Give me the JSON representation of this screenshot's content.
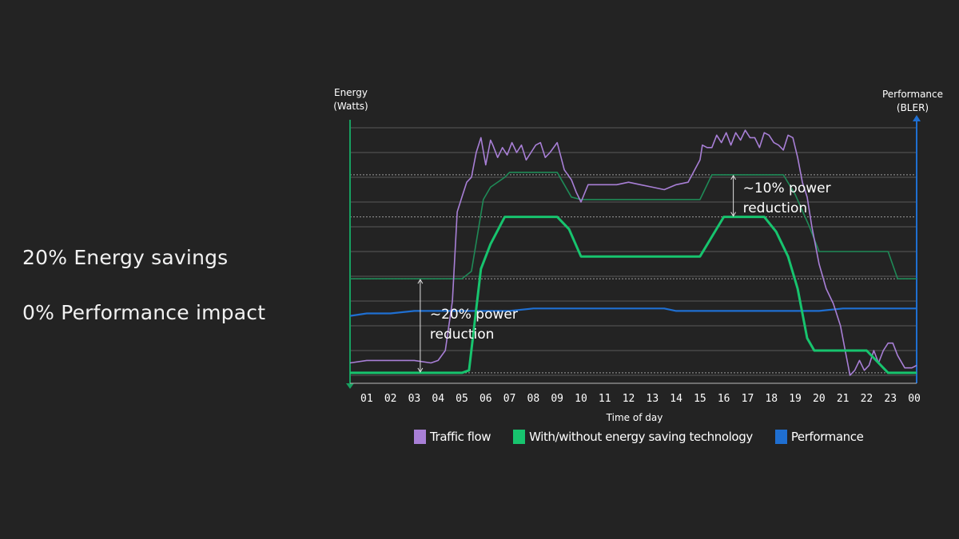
{
  "headlines": {
    "energy_savings": "20% Energy savings",
    "performance_impact": "0% Performance impact"
  },
  "colors": {
    "background": "#232323",
    "traffic": "#a87fd6",
    "with_saving": "#17c46e",
    "without_saving": "#1f8a57",
    "performance": "#1f6fd1",
    "left_axis": "#17a060",
    "right_axis": "#1f6fd1",
    "grid": "#5a5a5a"
  },
  "chart_data": {
    "type": "line",
    "title": "",
    "xlabel": "Time of day",
    "ylabel_left": [
      "Energy",
      "(Watts)"
    ],
    "ylabel_right": [
      "Performance",
      "(BLER)"
    ],
    "x_ticks": [
      "01",
      "02",
      "03",
      "04",
      "05",
      "06",
      "07",
      "08",
      "09",
      "10",
      "11",
      "12",
      "13",
      "14",
      "15",
      "16",
      "17",
      "18",
      "19",
      "20",
      "21",
      "22",
      "23",
      "00"
    ],
    "xlim": [
      0.3,
      24.1
    ],
    "ylim": [
      0,
      100
    ],
    "grid": true,
    "legend_position": "bottom",
    "series": [
      {
        "name": "Traffic flow",
        "color_key": "traffic",
        "x": [
          0.3,
          1.0,
          2.0,
          3.0,
          3.7,
          4.0,
          4.3,
          4.6,
          4.8,
          5.0,
          5.2,
          5.4,
          5.6,
          5.8,
          6.0,
          6.2,
          6.3,
          6.5,
          6.7,
          6.9,
          7.1,
          7.3,
          7.5,
          7.7,
          7.9,
          8.1,
          8.3,
          8.5,
          8.7,
          9.0,
          9.3,
          9.6,
          9.8,
          10.0,
          10.3,
          10.6,
          11.0,
          11.5,
          12.0,
          12.5,
          13.0,
          13.5,
          14.0,
          14.5,
          15.0,
          15.1,
          15.3,
          15.5,
          15.7,
          15.9,
          16.1,
          16.3,
          16.5,
          16.7,
          16.9,
          17.1,
          17.3,
          17.5,
          17.7,
          17.9,
          18.1,
          18.3,
          18.5,
          18.7,
          18.9,
          19.1,
          19.3,
          19.5,
          19.7,
          20.0,
          20.3,
          20.6,
          20.9,
          21.1,
          21.3,
          21.5,
          21.7,
          21.9,
          22.1,
          22.3,
          22.5,
          22.7,
          22.9,
          23.1,
          23.3,
          23.6,
          23.9,
          24.1
        ],
        "y": [
          5,
          6,
          6,
          6,
          5,
          6,
          10,
          30,
          66,
          72,
          78,
          80,
          90,
          96,
          85,
          95,
          93,
          88,
          92,
          89,
          94,
          90,
          93,
          87,
          90,
          93,
          94,
          88,
          90,
          94,
          83,
          79,
          74,
          70,
          77,
          77,
          77,
          77,
          78,
          77,
          76,
          75,
          77,
          78,
          87,
          93,
          92,
          92,
          97,
          94,
          98,
          93,
          98,
          95,
          99,
          96,
          96,
          92,
          98,
          97,
          94,
          93,
          91,
          97,
          96,
          88,
          78,
          72,
          60,
          45,
          35,
          29,
          20,
          10,
          0,
          2,
          6,
          2,
          4,
          10,
          5,
          10,
          13,
          13,
          8,
          3,
          3,
          4
        ]
      },
      {
        "name": "Without energy saving technology",
        "legend_group": "With/without energy saving technology",
        "color_key": "without_saving",
        "x": [
          0.3,
          1.0,
          2.0,
          3.0,
          4.0,
          5.0,
          5.4,
          5.9,
          6.2,
          6.8,
          7.0,
          7.5,
          8.0,
          9.0,
          9.6,
          10.0,
          10.5,
          11.0,
          12.0,
          13.0,
          14.0,
          15.0,
          15.5,
          16.0,
          17.0,
          18.0,
          18.5,
          19.0,
          19.6,
          20.0,
          21.0,
          22.0,
          22.9,
          23.3,
          24.1
        ],
        "y": [
          39,
          39,
          39,
          39,
          39,
          39,
          42,
          71,
          76,
          80,
          82,
          82,
          82,
          82,
          72,
          71,
          71,
          71,
          71,
          71,
          71,
          71,
          81,
          81,
          81,
          81,
          81,
          73,
          60,
          50,
          50,
          50,
          50,
          39,
          39
        ]
      },
      {
        "name": "With energy saving technology",
        "legend_group": "With/without energy saving technology",
        "color_key": "with_saving",
        "x": [
          0.3,
          1.0,
          2.0,
          3.0,
          4.0,
          5.0,
          5.3,
          5.8,
          6.2,
          6.8,
          7.0,
          8.0,
          8.8,
          9.0,
          9.5,
          10.0,
          11.0,
          12.0,
          13.0,
          14.0,
          15.0,
          15.5,
          16.0,
          17.0,
          17.7,
          18.2,
          18.7,
          19.1,
          19.5,
          19.8,
          20.0,
          21.0,
          22.0,
          22.9,
          23.3,
          24.1
        ],
        "y": [
          1,
          1,
          1,
          1,
          1,
          1,
          2,
          43,
          53,
          64,
          64,
          64,
          64,
          64,
          59,
          48,
          48,
          48,
          48,
          48,
          48,
          56,
          64,
          64,
          64,
          58,
          48,
          35,
          15,
          10,
          10,
          10,
          10,
          1,
          1,
          1
        ]
      },
      {
        "name": "Performance",
        "color_key": "performance",
        "x": [
          0.3,
          1.0,
          2.0,
          3.0,
          4.0,
          5.0,
          6.0,
          7.0,
          8.0,
          9.0,
          10.0,
          11.0,
          12.0,
          12.8,
          13.5,
          14.0,
          15.0,
          16.0,
          17.0,
          18.0,
          19.0,
          20.0,
          21.0,
          22.0,
          23.0,
          24.1
        ],
        "y": [
          24,
          25,
          25,
          26,
          26,
          26,
          26,
          26,
          27,
          27,
          27,
          27,
          27,
          27,
          27,
          26,
          26,
          26,
          26,
          26,
          26,
          26,
          27,
          27,
          27,
          27
        ]
      }
    ],
    "legend": [
      {
        "label": "Traffic flow",
        "color_key": "traffic"
      },
      {
        "label": "With/without energy saving technology",
        "color_key": "with_saving"
      },
      {
        "label": "Performance",
        "color_key": "performance"
      }
    ],
    "annotations": [
      {
        "lines": [
          "~20% power",
          "reduction"
        ],
        "arrow_x": 3.25,
        "arrow_from_y": 1,
        "arrow_to_y": 39
      },
      {
        "lines": [
          "~10% power",
          "reduction"
        ],
        "arrow_x": 16.4,
        "arrow_from_y": 64,
        "arrow_to_y": 81
      }
    ]
  }
}
